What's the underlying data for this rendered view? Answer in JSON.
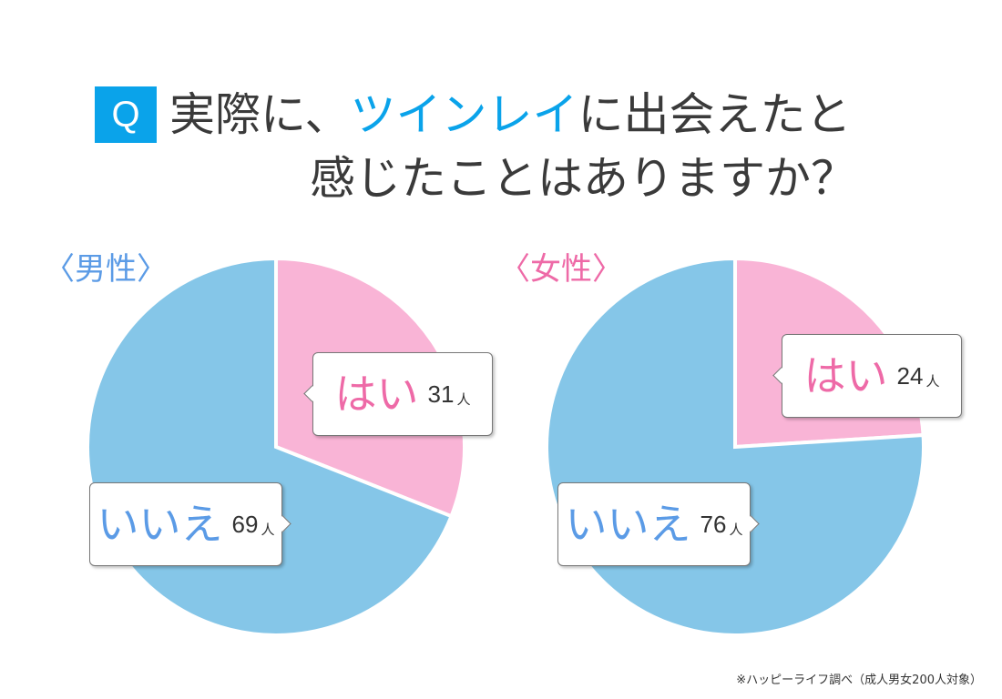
{
  "question": {
    "badge": "Q",
    "line1_prefix": "実際に、",
    "line1_highlight": "ツインレイ",
    "line1_suffix": "に出会えたと",
    "line2": "感じたことはありますか？"
  },
  "colors": {
    "accent": "#0aa3ea",
    "yes": "#f9b4d6",
    "no": "#85c6e8",
    "male_label": "#5b9be6",
    "female_label": "#ee6aa7"
  },
  "chart_data": [
    {
      "type": "pie",
      "title": "〈男性〉",
      "categories": [
        "はい",
        "いいえ"
      ],
      "values": [
        31,
        69
      ],
      "unit": "人",
      "colors": [
        "#f9b4d6",
        "#85c6e8"
      ]
    },
    {
      "type": "pie",
      "title": "〈女性〉",
      "categories": [
        "はい",
        "いいえ"
      ],
      "values": [
        24,
        76
      ],
      "unit": "人",
      "colors": [
        "#f9b4d6",
        "#85c6e8"
      ]
    }
  ],
  "source_note": "※ハッピーライフ調べ（成人男女200人対象）"
}
